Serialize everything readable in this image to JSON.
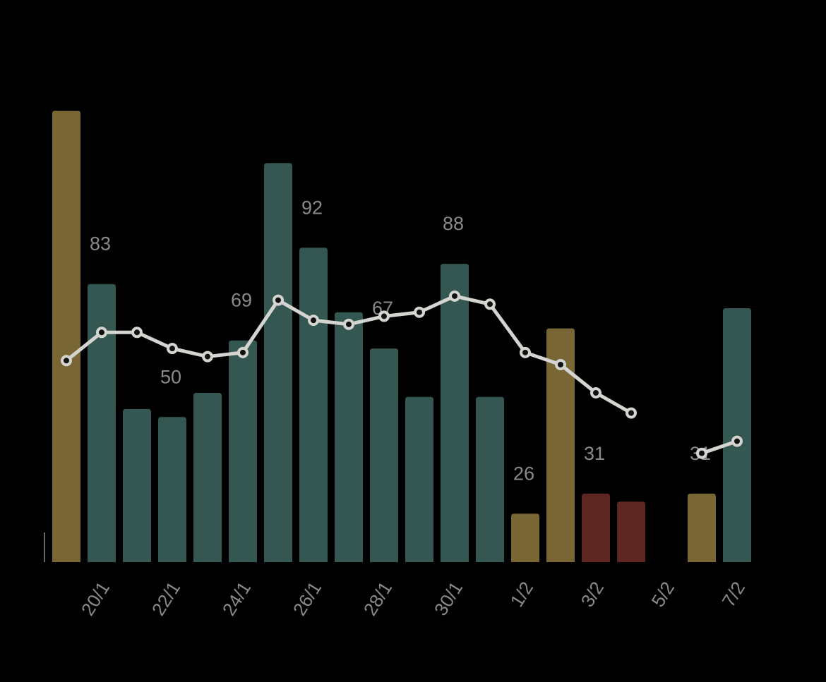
{
  "chart_data": {
    "type": "bar",
    "categories": [
      null,
      "20/1",
      null,
      "22/1",
      null,
      "24/1",
      null,
      "26/1",
      null,
      "28/1",
      null,
      "30/1",
      null,
      "1/2",
      null,
      "3/2",
      null,
      "5/2",
      null,
      "7/2"
    ],
    "ylim": [
      14,
      140
    ],
    "series": [
      {
        "type": "bar",
        "values": [
          126,
          83,
          52,
          50,
          56,
          69,
          113,
          92,
          76,
          67,
          55,
          88,
          55,
          26,
          72,
          31,
          29,
          null,
          31,
          77
        ],
        "value_labels": [
          null,
          "83",
          null,
          "50",
          null,
          "69",
          null,
          "92",
          null,
          "67",
          null,
          "88",
          null,
          "26",
          null,
          "31",
          null,
          null,
          "31",
          null
        ],
        "colors": [
          "#786635",
          "#345752",
          "#345752",
          "#345752",
          "#345752",
          "#345752",
          "#345752",
          "#345752",
          "#345752",
          "#345752",
          "#345752",
          "#345752",
          "#345752",
          "#786635",
          "#786635",
          "#5e2620",
          "#5e2620",
          null,
          "#786635",
          "#345752"
        ]
      },
      {
        "type": "line",
        "color": "#d4d4d0",
        "values": [
          64,
          71,
          71,
          67,
          65,
          66,
          79,
          74,
          73,
          75,
          76,
          80,
          78,
          66,
          63,
          56,
          51,
          null,
          41,
          44
        ]
      }
    ]
  }
}
